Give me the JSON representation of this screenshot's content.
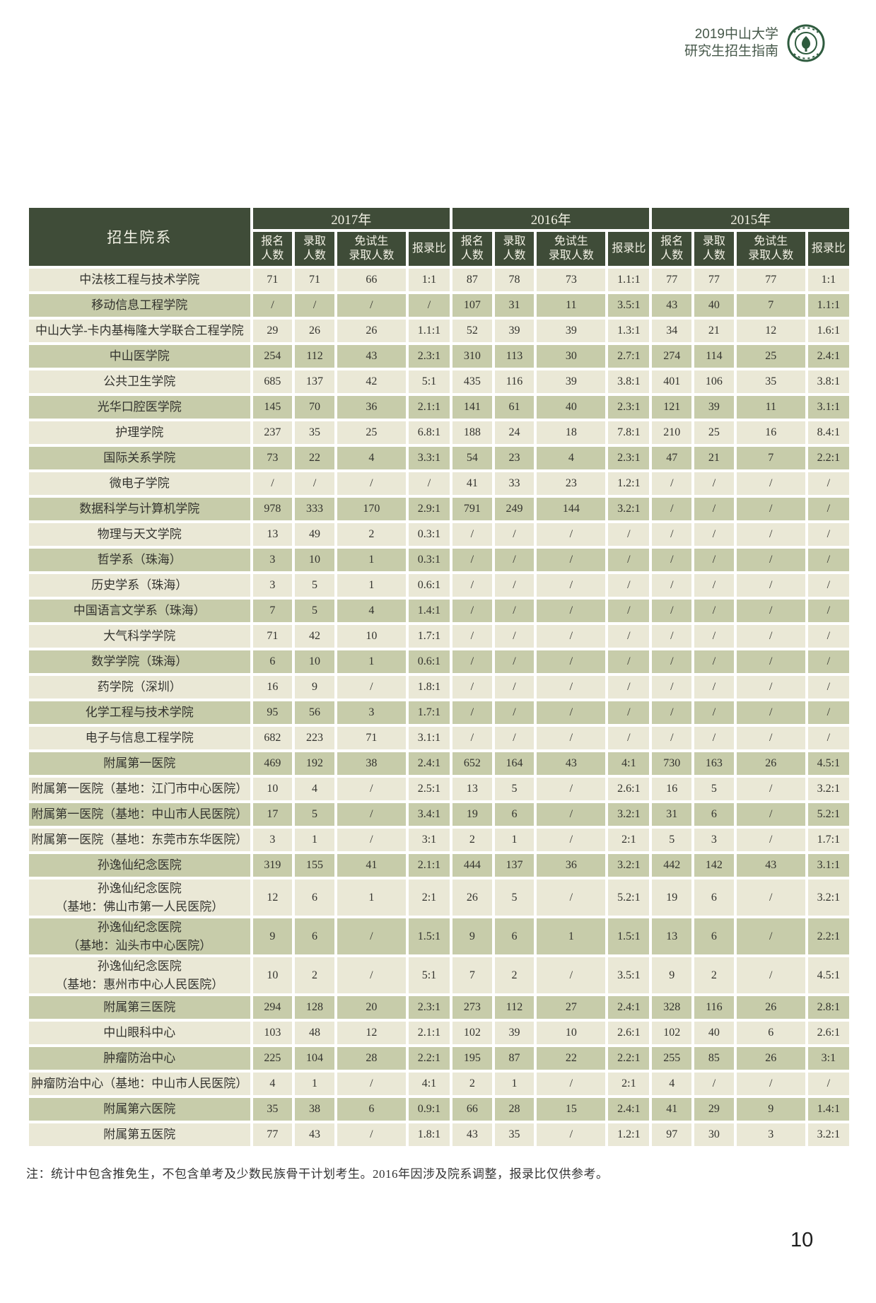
{
  "colors": {
    "header_green": "#3f4c38",
    "row_light": "#eae8d6",
    "row_dark": "#c7ccaa",
    "logo_green": "#2e5b3e",
    "running_head_text": "#46584a"
  },
  "running_head": {
    "line1": "2019中山大学",
    "line2": "研究生招生指南",
    "logo": "sun-yat-sen-university-seal"
  },
  "table": {
    "corner_header": "招生院系",
    "year_groups": [
      "2017年",
      "2016年",
      "2015年"
    ],
    "sub_headers": [
      "报名\n人数",
      "录取\n人数",
      "免试生\n录取人数",
      "报录比"
    ],
    "rows": [
      {
        "name": "中法核工程与技术学院",
        "values": [
          "71",
          "71",
          "66",
          "1:1",
          "87",
          "78",
          "73",
          "1.1:1",
          "77",
          "77",
          "77",
          "1:1"
        ]
      },
      {
        "name": "移动信息工程学院",
        "values": [
          "/",
          "/",
          "/",
          "/",
          "107",
          "31",
          "11",
          "3.5:1",
          "43",
          "40",
          "7",
          "1.1:1"
        ]
      },
      {
        "name": "中山大学-卡内基梅隆大学联合工程学院",
        "values": [
          "29",
          "26",
          "26",
          "1.1:1",
          "52",
          "39",
          "39",
          "1.3:1",
          "34",
          "21",
          "12",
          "1.6:1"
        ]
      },
      {
        "name": "中山医学院",
        "values": [
          "254",
          "112",
          "43",
          "2.3:1",
          "310",
          "113",
          "30",
          "2.7:1",
          "274",
          "114",
          "25",
          "2.4:1"
        ]
      },
      {
        "name": "公共卫生学院",
        "values": [
          "685",
          "137",
          "42",
          "5:1",
          "435",
          "116",
          "39",
          "3.8:1",
          "401",
          "106",
          "35",
          "3.8:1"
        ]
      },
      {
        "name": "光华口腔医学院",
        "values": [
          "145",
          "70",
          "36",
          "2.1:1",
          "141",
          "61",
          "40",
          "2.3:1",
          "121",
          "39",
          "11",
          "3.1:1"
        ]
      },
      {
        "name": "护理学院",
        "values": [
          "237",
          "35",
          "25",
          "6.8:1",
          "188",
          "24",
          "18",
          "7.8:1",
          "210",
          "25",
          "16",
          "8.4:1"
        ]
      },
      {
        "name": "国际关系学院",
        "values": [
          "73",
          "22",
          "4",
          "3.3:1",
          "54",
          "23",
          "4",
          "2.3:1",
          "47",
          "21",
          "7",
          "2.2:1"
        ]
      },
      {
        "name": "微电子学院",
        "values": [
          "/",
          "/",
          "/",
          "/",
          "41",
          "33",
          "23",
          "1.2:1",
          "/",
          "/",
          "/",
          "/"
        ]
      },
      {
        "name": "数据科学与计算机学院",
        "values": [
          "978",
          "333",
          "170",
          "2.9:1",
          "791",
          "249",
          "144",
          "3.2:1",
          "/",
          "/",
          "/",
          "/"
        ]
      },
      {
        "name": "物理与天文学院",
        "values": [
          "13",
          "49",
          "2",
          "0.3:1",
          "/",
          "/",
          "/",
          "/",
          "/",
          "/",
          "/",
          "/"
        ]
      },
      {
        "name": "哲学系（珠海）",
        "values": [
          "3",
          "10",
          "1",
          "0.3:1",
          "/",
          "/",
          "/",
          "/",
          "/",
          "/",
          "/",
          "/"
        ]
      },
      {
        "name": "历史学系（珠海）",
        "values": [
          "3",
          "5",
          "1",
          "0.6:1",
          "/",
          "/",
          "/",
          "/",
          "/",
          "/",
          "/",
          "/"
        ]
      },
      {
        "name": "中国语言文学系（珠海）",
        "values": [
          "7",
          "5",
          "4",
          "1.4:1",
          "/",
          "/",
          "/",
          "/",
          "/",
          "/",
          "/",
          "/"
        ]
      },
      {
        "name": "大气科学学院",
        "values": [
          "71",
          "42",
          "10",
          "1.7:1",
          "/",
          "/",
          "/",
          "/",
          "/",
          "/",
          "/",
          "/"
        ]
      },
      {
        "name": "数学学院（珠海）",
        "values": [
          "6",
          "10",
          "1",
          "0.6:1",
          "/",
          "/",
          "/",
          "/",
          "/",
          "/",
          "/",
          "/"
        ]
      },
      {
        "name": "药学院（深圳）",
        "values": [
          "16",
          "9",
          "/",
          "1.8:1",
          "/",
          "/",
          "/",
          "/",
          "/",
          "/",
          "/",
          "/"
        ]
      },
      {
        "name": "化学工程与技术学院",
        "values": [
          "95",
          "56",
          "3",
          "1.7:1",
          "/",
          "/",
          "/",
          "/",
          "/",
          "/",
          "/",
          "/"
        ]
      },
      {
        "name": "电子与信息工程学院",
        "values": [
          "682",
          "223",
          "71",
          "3.1:1",
          "/",
          "/",
          "/",
          "/",
          "/",
          "/",
          "/",
          "/"
        ]
      },
      {
        "name": "附属第一医院",
        "values": [
          "469",
          "192",
          "38",
          "2.4:1",
          "652",
          "164",
          "43",
          "4:1",
          "730",
          "163",
          "26",
          "4.5:1"
        ]
      },
      {
        "name": "附属第一医院（基地：江门市中心医院）",
        "values": [
          "10",
          "4",
          "/",
          "2.5:1",
          "13",
          "5",
          "/",
          "2.6:1",
          "16",
          "5",
          "/",
          "3.2:1"
        ]
      },
      {
        "name": "附属第一医院（基地：中山市人民医院）",
        "values": [
          "17",
          "5",
          "/",
          "3.4:1",
          "19",
          "6",
          "/",
          "3.2:1",
          "31",
          "6",
          "/",
          "5.2:1"
        ]
      },
      {
        "name": "附属第一医院（基地：东莞市东华医院）",
        "values": [
          "3",
          "1",
          "/",
          "3:1",
          "2",
          "1",
          "/",
          "2:1",
          "5",
          "3",
          "/",
          "1.7:1"
        ]
      },
      {
        "name": "孙逸仙纪念医院",
        "values": [
          "319",
          "155",
          "41",
          "2.1:1",
          "444",
          "137",
          "36",
          "3.2:1",
          "442",
          "142",
          "43",
          "3.1:1"
        ]
      },
      {
        "name": "孙逸仙纪念医院\n（基地：佛山市第一人民医院）",
        "values": [
          "12",
          "6",
          "1",
          "2:1",
          "26",
          "5",
          "/",
          "5.2:1",
          "19",
          "6",
          "/",
          "3.2:1"
        ]
      },
      {
        "name": "孙逸仙纪念医院\n（基地：汕头市中心医院）",
        "values": [
          "9",
          "6",
          "/",
          "1.5:1",
          "9",
          "6",
          "1",
          "1.5:1",
          "13",
          "6",
          "/",
          "2.2:1"
        ]
      },
      {
        "name": "孙逸仙纪念医院\n（基地：惠州市中心人民医院）",
        "values": [
          "10",
          "2",
          "/",
          "5:1",
          "7",
          "2",
          "/",
          "3.5:1",
          "9",
          "2",
          "/",
          "4.5:1"
        ]
      },
      {
        "name": "附属第三医院",
        "values": [
          "294",
          "128",
          "20",
          "2.3:1",
          "273",
          "112",
          "27",
          "2.4:1",
          "328",
          "116",
          "26",
          "2.8:1"
        ]
      },
      {
        "name": "中山眼科中心",
        "values": [
          "103",
          "48",
          "12",
          "2.1:1",
          "102",
          "39",
          "10",
          "2.6:1",
          "102",
          "40",
          "6",
          "2.6:1"
        ]
      },
      {
        "name": "肿瘤防治中心",
        "values": [
          "225",
          "104",
          "28",
          "2.2:1",
          "195",
          "87",
          "22",
          "2.2:1",
          "255",
          "85",
          "26",
          "3:1"
        ]
      },
      {
        "name": "肿瘤防治中心（基地：中山市人民医院）",
        "values": [
          "4",
          "1",
          "/",
          "4:1",
          "2",
          "1",
          "/",
          "2:1",
          "4",
          "/",
          "/",
          "/"
        ]
      },
      {
        "name": "附属第六医院",
        "values": [
          "35",
          "38",
          "6",
          "0.9:1",
          "66",
          "28",
          "15",
          "2.4:1",
          "41",
          "29",
          "9",
          "1.4:1"
        ]
      },
      {
        "name": "附属第五医院",
        "values": [
          "77",
          "43",
          "/",
          "1.8:1",
          "43",
          "35",
          "/",
          "1.2:1",
          "97",
          "30",
          "3",
          "3.2:1"
        ]
      }
    ]
  },
  "note": "注：统计中包含推免生，不包含单考及少数民族骨干计划考生。2016年因涉及院系调整，报录比仅供参考。",
  "page_number": "10"
}
